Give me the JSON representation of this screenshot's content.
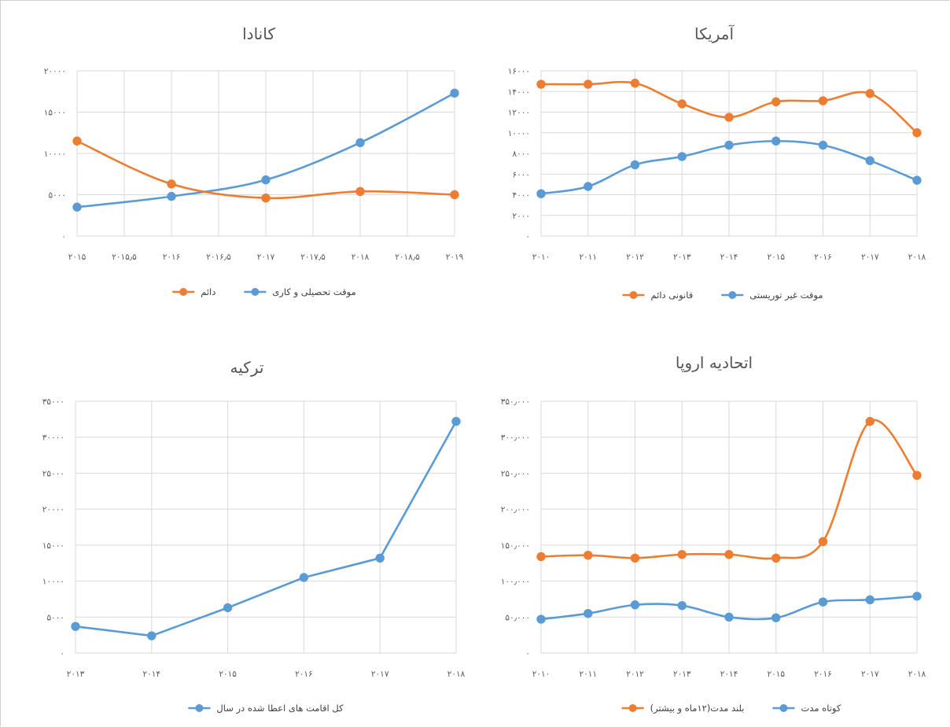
{
  "chart_data": [
    {
      "id": "canada",
      "type": "line",
      "title": "کانادا",
      "smooth": true,
      "x": [
        2015,
        2016,
        2017,
        2018,
        2019
      ],
      "xticks": [
        "۲۰۱۵",
        "۲۰۱۵٫۵",
        "۲۰۱۶",
        "۲۰۱۶٫۵",
        "۲۰۱۷",
        "۲۰۱۷٫۵",
        "۲۰۱۸",
        "۲۰۱۸٫۵",
        "۲۰۱۹"
      ],
      "xlim": [
        2015,
        2019
      ],
      "ylim": [
        0,
        20000
      ],
      "yticks": [
        "۰",
        "۵۰۰۰",
        "۱۰۰۰۰",
        "۱۵۰۰۰",
        "۲۰۰۰۰"
      ],
      "series": [
        {
          "name": "موقت تحصیلی و کاری",
          "color": "#5B9BD5",
          "values": [
            3500,
            4800,
            6800,
            11300,
            17300
          ]
        },
        {
          "name": "دائم",
          "color": "#ED7D31",
          "values": [
            11500,
            6300,
            4600,
            5400,
            5000
          ]
        }
      ]
    },
    {
      "id": "america",
      "type": "line",
      "title": "آمریکا",
      "smooth": true,
      "categories": [
        "۲۰۱۰",
        "۲۰۱۱",
        "۲۰۱۲",
        "۲۰۱۳",
        "۲۰۱۴",
        "۲۰۱۵",
        "۲۰۱۶",
        "۲۰۱۷",
        "۲۰۱۸"
      ],
      "ylim": [
        0,
        16000
      ],
      "yticks": [
        "۰",
        "۲۰۰۰",
        "۴۰۰۰",
        "۶۰۰۰",
        "۸۰۰۰",
        "۱۰۰۰۰",
        "۱۲۰۰۰",
        "۱۴۰۰۰",
        "۱۶۰۰۰"
      ],
      "series": [
        {
          "name": "موقت غیر توریستی",
          "color": "#5B9BD5",
          "values": [
            4100,
            4800,
            6900,
            7700,
            8800,
            9200,
            8800,
            7300,
            5400
          ]
        },
        {
          "name": "قانونی دائم",
          "color": "#ED7D31",
          "values": [
            14700,
            14700,
            14800,
            12800,
            11500,
            13000,
            13100,
            13800,
            10000
          ]
        }
      ]
    },
    {
      "id": "turkey",
      "type": "line",
      "title": "ترکیه",
      "smooth": false,
      "categories": [
        "۲۰۱۳",
        "۲۰۱۴",
        "۲۰۱۵",
        "۲۰۱۶",
        "۲۰۱۷",
        "۲۰۱۸"
      ],
      "ylim": [
        0,
        35000
      ],
      "yticks": [
        "۰",
        "۵۰۰۰",
        "۱۰۰۰۰",
        "۱۵۰۰۰",
        "۲۰۰۰۰",
        "۲۵۰۰۰",
        "۳۰۰۰۰",
        "۳۵۰۰۰"
      ],
      "series": [
        {
          "name": "کل اقامت های اعطا شده در سال",
          "color": "#5B9BD5",
          "values": [
            3700,
            2400,
            6300,
            10500,
            13200,
            32200
          ]
        }
      ]
    },
    {
      "id": "eu",
      "type": "line",
      "title": "اتحادیه اروپا",
      "smooth": true,
      "categories": [
        "۲۰۱۰",
        "۲۰۱۱",
        "۲۰۱۲",
        "۲۰۱۳",
        "۲۰۱۴",
        "۲۰۱۵",
        "۲۰۱۶",
        "۲۰۱۷",
        "۲۰۱۸"
      ],
      "ylim": [
        0,
        350000
      ],
      "yticks": [
        "۰",
        "۵۰٫۰۰۰",
        "۱۰۰٫۰۰۰",
        "۱۵۰٫۰۰۰",
        "۲۰۰٫۰۰۰",
        "۲۵۰٫۰۰۰",
        "۳۰۰٫۰۰۰",
        "۳۵۰٫۰۰۰"
      ],
      "series": [
        {
          "name": "کوتاه مدت",
          "color": "#5B9BD5",
          "values": [
            47000,
            55000,
            67000,
            66000,
            50000,
            49000,
            71000,
            74000,
            79000
          ]
        },
        {
          "name": "بلند مدت(۱۲ماه و بیشتر)",
          "color": "#ED7D31",
          "values": [
            134000,
            136000,
            132000,
            137000,
            137000,
            132000,
            155000,
            322000,
            247000
          ]
        }
      ]
    }
  ]
}
